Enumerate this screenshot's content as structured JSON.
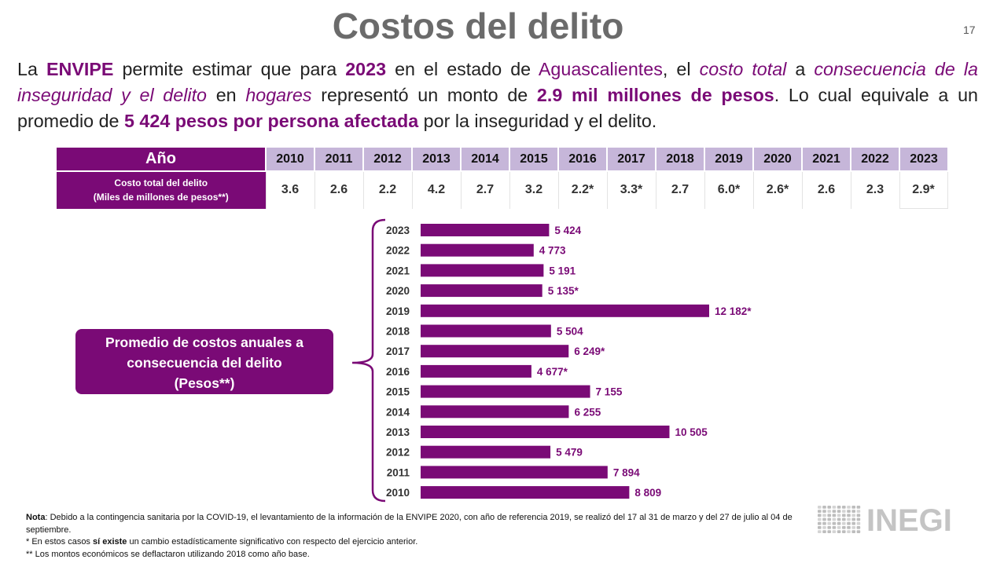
{
  "title": "Costos del delito",
  "page_number": "17",
  "intro": {
    "p1": "La ",
    "envipe": "ENVIPE",
    "p2": " permite estimar que para ",
    "year": "2023",
    "p3": " en el estado de ",
    "state": "Aguascalientes",
    "p4": ", el ",
    "costo_total": "costo total",
    "p5": " a ",
    "consecuencia": "consecuencia de la inseguridad y el delito",
    "p6": " en ",
    "hogares": "hogares",
    "p7": " representó un monto de ",
    "monto": "2.9 mil millones de pesos",
    "p8": ". Lo cual equivale a un promedio de ",
    "promedio": "5 424 pesos por persona afectada",
    "p9": " por la inseguridad y el delito."
  },
  "table": {
    "header_label": "Año",
    "row_label_line1": "Costo total del delito",
    "row_label_line2": "(Miles de millones de pesos**)",
    "years": [
      "2010",
      "2011",
      "2012",
      "2013",
      "2014",
      "2015",
      "2016",
      "2017",
      "2018",
      "2019",
      "2020",
      "2021",
      "2022",
      "2023"
    ],
    "values": [
      "3.6",
      "2.6",
      "2.2",
      "4.2",
      "2.7",
      "3.2",
      "2.2*",
      "3.3*",
      "2.7",
      "6.0*",
      "2.6*",
      "2.6",
      "2.3",
      "2.9*"
    ]
  },
  "callout": {
    "line1": "Promedio de costos anuales a",
    "line2": "consecuencia del delito",
    "line3": "(Pesos**)"
  },
  "chart_data": {
    "type": "bar",
    "orientation": "horizontal",
    "title": "Promedio de costos anuales a consecuencia del delito (Pesos**)",
    "categories": [
      "2023",
      "2022",
      "2021",
      "2020",
      "2019",
      "2018",
      "2017",
      "2016",
      "2015",
      "2014",
      "2013",
      "2012",
      "2011",
      "2010"
    ],
    "values": [
      5424,
      4773,
      5191,
      5135,
      12182,
      5504,
      6249,
      4677,
      7155,
      6255,
      10505,
      5479,
      7894,
      8809
    ],
    "labels": [
      "5 424",
      "4 773",
      "5 191",
      "5 135*",
      "12 182*",
      "5 504",
      "6 249*",
      "4 677*",
      "7 155",
      "6 255",
      "10 505",
      "5 479",
      "7 894",
      "8 809"
    ],
    "xlim": [
      0,
      12182
    ],
    "bar_color": "#7a0a76"
  },
  "notes": {
    "nota_label": "Nota",
    "nota_text": ": Debido a la contingencia sanitaria por la COVID-19, el levantamiento de la información de la ENVIPE 2020, con año de referencia 2019, se realizó del 17 al 31 de marzo y del 27 de julio al 04 de septiembre.",
    "star_a": "* En estos casos ",
    "star_bold": "sí existe",
    "star_b": " un cambio estadísticamente significativo con respecto del ejercicio anterior.",
    "double_star": "** Los montos económicos se deflactaron utilizando 2018 como año base."
  },
  "logo_text": "INEGI",
  "colors": {
    "purple": "#7a0a76",
    "lavender": "#c6b6d9",
    "title_gray": "#6b6b6b"
  }
}
